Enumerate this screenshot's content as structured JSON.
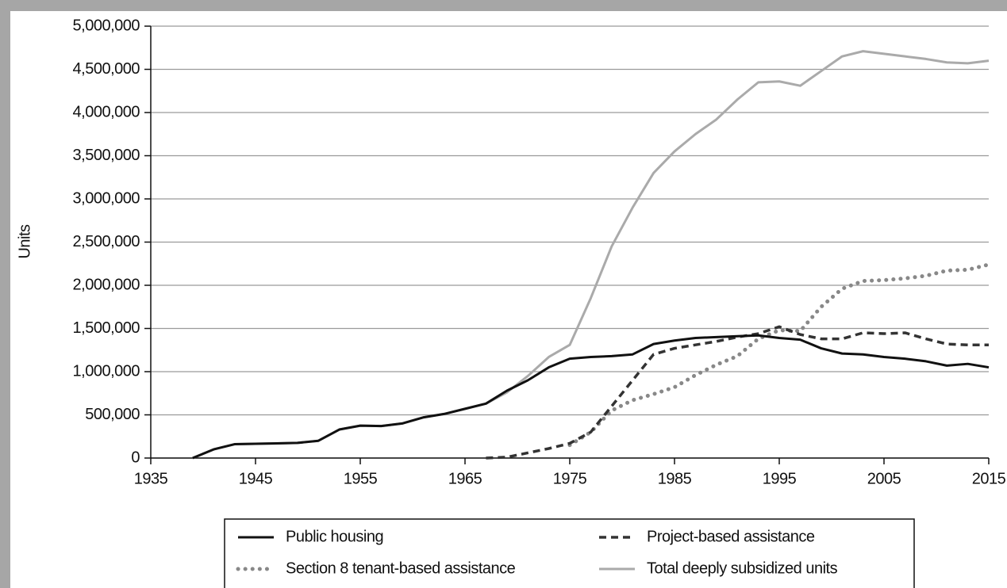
{
  "chart_data": {
    "type": "line",
    "y_label": "Units",
    "x": [
      1939,
      1941,
      1943,
      1945,
      1947,
      1949,
      1951,
      1953,
      1955,
      1957,
      1959,
      1961,
      1963,
      1965,
      1967,
      1969,
      1971,
      1973,
      1975,
      1977,
      1979,
      1981,
      1983,
      1985,
      1987,
      1989,
      1991,
      1993,
      1995,
      1997,
      1999,
      2001,
      2003,
      2005,
      2007,
      2009,
      2011,
      2013,
      2015
    ],
    "xlim": [
      1935,
      2015
    ],
    "xticks": [
      1935,
      1945,
      1955,
      1965,
      1975,
      1985,
      1995,
      2005,
      2015
    ],
    "ylim": [
      0,
      5000000
    ],
    "yticks": [
      {
        "value": 0,
        "label": "0"
      },
      {
        "value": 500000,
        "label": "500,000"
      },
      {
        "value": 1000000,
        "label": "1,000,000"
      },
      {
        "value": 1500000,
        "label": "1,500,000"
      },
      {
        "value": 2000000,
        "label": "2,000,000"
      },
      {
        "value": 2500000,
        "label": "2,500,000"
      },
      {
        "value": 3000000,
        "label": "3,000,000"
      },
      {
        "value": 3500000,
        "label": "3,500,000"
      },
      {
        "value": 4000000,
        "label": "4,000,000"
      },
      {
        "value": 4500000,
        "label": "4,500,000"
      },
      {
        "value": 5000000,
        "label": "5,000,000"
      }
    ],
    "grid": true,
    "series": [
      {
        "name": "Public housing",
        "color": "#111111",
        "style": "solid",
        "values": [
          0,
          100000,
          160000,
          165000,
          170000,
          175000,
          200000,
          330000,
          375000,
          370000,
          400000,
          470000,
          510000,
          570000,
          630000,
          780000,
          900000,
          1050000,
          1150000,
          1170000,
          1180000,
          1200000,
          1320000,
          1360000,
          1390000,
          1400000,
          1410000,
          1420000,
          1390000,
          1370000,
          1270000,
          1210000,
          1200000,
          1170000,
          1150000,
          1120000,
          1070000,
          1090000,
          1050000
        ]
      },
      {
        "name": "Project-based assistance",
        "color": "#333333",
        "style": "dashed",
        "values": [
          null,
          null,
          null,
          null,
          null,
          null,
          null,
          null,
          null,
          null,
          null,
          null,
          null,
          null,
          0,
          10000,
          60000,
          110000,
          170000,
          300000,
          600000,
          900000,
          1200000,
          1270000,
          1310000,
          1350000,
          1400000,
          1440000,
          1520000,
          1430000,
          1380000,
          1380000,
          1450000,
          1440000,
          1450000,
          1380000,
          1320000,
          1310000,
          1310000
        ]
      },
      {
        "name": "Section 8 tenant-based assistance",
        "color": "#888888",
        "style": "dotted",
        "values": [
          null,
          null,
          null,
          null,
          null,
          null,
          null,
          null,
          null,
          null,
          null,
          null,
          null,
          null,
          null,
          null,
          null,
          null,
          150000,
          300000,
          550000,
          670000,
          740000,
          820000,
          960000,
          1080000,
          1180000,
          1380000,
          1480000,
          1470000,
          1750000,
          1960000,
          2050000,
          2060000,
          2080000,
          2110000,
          2170000,
          2180000,
          2240000
        ]
      },
      {
        "name": "Total deeply subsidized units",
        "color": "#aaaaaa",
        "style": "solid",
        "values": [
          0,
          100000,
          160000,
          165000,
          170000,
          175000,
          200000,
          330000,
          375000,
          370000,
          400000,
          470000,
          510000,
          570000,
          630000,
          760000,
          950000,
          1170000,
          1310000,
          1850000,
          2450000,
          2900000,
          3300000,
          3550000,
          3750000,
          3920000,
          4150000,
          4350000,
          4360000,
          4310000,
          4480000,
          4650000,
          4710000,
          4680000,
          4650000,
          4620000,
          4580000,
          4570000,
          4600000
        ]
      }
    ]
  }
}
